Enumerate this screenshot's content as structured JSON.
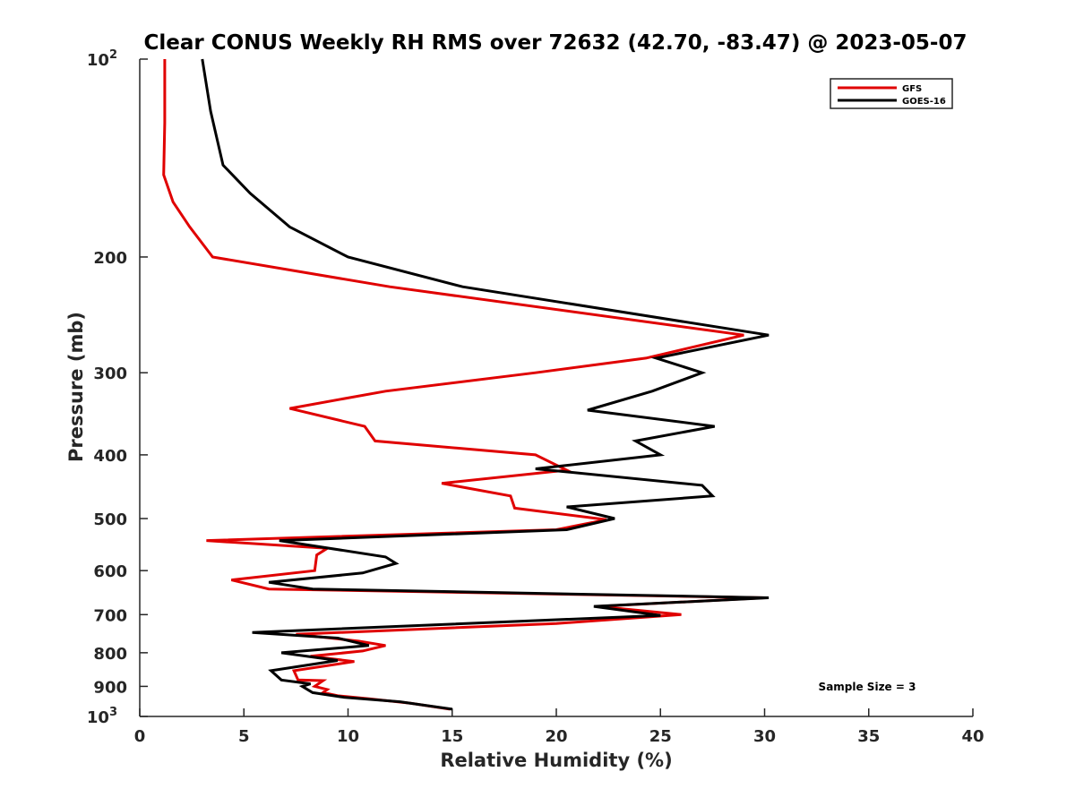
{
  "chart_data": {
    "type": "line",
    "title": "Clear CONUS Weekly RH RMS over 72632 (42.70, -83.47) @ 2023-05-07",
    "xlabel": "Relative Humidity (%)",
    "ylabel": "Pressure (mb)",
    "xlim": [
      0,
      40
    ],
    "ylim": [
      100,
      1000
    ],
    "y_scale": "log",
    "y_reversed": true,
    "xticks": [
      "0",
      "5",
      "10",
      "15",
      "20",
      "25",
      "30",
      "35",
      "40"
    ],
    "yticks": [
      {
        "value": 100,
        "base": "10",
        "exp": "2"
      },
      {
        "value": 200,
        "label": "200"
      },
      {
        "value": 300,
        "label": "300"
      },
      {
        "value": 400,
        "label": "400"
      },
      {
        "value": 500,
        "label": "500"
      },
      {
        "value": 600,
        "label": "600"
      },
      {
        "value": 700,
        "label": "700"
      },
      {
        "value": 800,
        "label": "800"
      },
      {
        "value": 900,
        "label": "900"
      },
      {
        "value": 1000,
        "base": "10",
        "exp": "3"
      }
    ],
    "grid": false,
    "legend_position": "top-right",
    "annotation": "Sample Size = 3",
    "series": [
      {
        "name": "GFS",
        "color": "#e00000",
        "points": [
          [
            1.2,
            100
          ],
          [
            1.2,
            125
          ],
          [
            1.15,
            150
          ],
          [
            1.6,
            165
          ],
          [
            2.4,
            180
          ],
          [
            3.5,
            200
          ],
          [
            12.0,
            222
          ],
          [
            29.0,
            263
          ],
          [
            24.3,
            285
          ],
          [
            19.0,
            300
          ],
          [
            11.8,
            320
          ],
          [
            7.2,
            340
          ],
          [
            10.8,
            362
          ],
          [
            11.3,
            381
          ],
          [
            19.0,
            400
          ],
          [
            20.5,
            422
          ],
          [
            14.5,
            442
          ],
          [
            17.8,
            462
          ],
          [
            18.0,
            482
          ],
          [
            22.4,
            502
          ],
          [
            20.0,
            520
          ],
          [
            3.2,
            540
          ],
          [
            9.0,
            555
          ],
          [
            8.5,
            568
          ],
          [
            8.4,
            600
          ],
          [
            4.4,
            620
          ],
          [
            6.2,
            640
          ],
          [
            30.0,
            660
          ],
          [
            22.0,
            680
          ],
          [
            26.0,
            700
          ],
          [
            20.0,
            722
          ],
          [
            7.5,
            750
          ],
          [
            10.5,
            768
          ],
          [
            11.8,
            780
          ],
          [
            10.7,
            795
          ],
          [
            8.2,
            810
          ],
          [
            10.3,
            825
          ],
          [
            7.4,
            852
          ],
          [
            7.6,
            880
          ],
          [
            8.8,
            882
          ],
          [
            8.4,
            900
          ],
          [
            9.0,
            910
          ],
          [
            8.8,
            920
          ],
          [
            9.5,
            930
          ],
          [
            11.0,
            940
          ],
          [
            13.0,
            955
          ],
          [
            14.9,
            975
          ]
        ]
      },
      {
        "name": "GOES-16",
        "color": "#000000",
        "points": [
          [
            3.0,
            100
          ],
          [
            3.4,
            120
          ],
          [
            4.0,
            145
          ],
          [
            5.3,
            160
          ],
          [
            7.2,
            180
          ],
          [
            10.0,
            200
          ],
          [
            15.5,
            222
          ],
          [
            30.2,
            263
          ],
          [
            24.8,
            285
          ],
          [
            27.0,
            300
          ],
          [
            24.6,
            320
          ],
          [
            21.5,
            342
          ],
          [
            27.6,
            362
          ],
          [
            23.8,
            381
          ],
          [
            25.0,
            400
          ],
          [
            19.0,
            420
          ],
          [
            27.0,
            445
          ],
          [
            27.5,
            462
          ],
          [
            20.5,
            480
          ],
          [
            22.8,
            500
          ],
          [
            20.5,
            520
          ],
          [
            6.7,
            540
          ],
          [
            11.8,
            572
          ],
          [
            12.3,
            585
          ],
          [
            10.7,
            605
          ],
          [
            6.2,
            625
          ],
          [
            8.3,
            640
          ],
          [
            30.2,
            660
          ],
          [
            21.8,
            680
          ],
          [
            25.0,
            702
          ],
          [
            5.4,
            745
          ],
          [
            9.5,
            760
          ],
          [
            11.0,
            780
          ],
          [
            6.8,
            800
          ],
          [
            9.5,
            822
          ],
          [
            6.3,
            852
          ],
          [
            6.8,
            880
          ],
          [
            8.2,
            892
          ],
          [
            7.8,
            900
          ],
          [
            8.3,
            920
          ],
          [
            9.8,
            935
          ],
          [
            12.5,
            950
          ],
          [
            15.0,
            975
          ]
        ]
      }
    ]
  }
}
